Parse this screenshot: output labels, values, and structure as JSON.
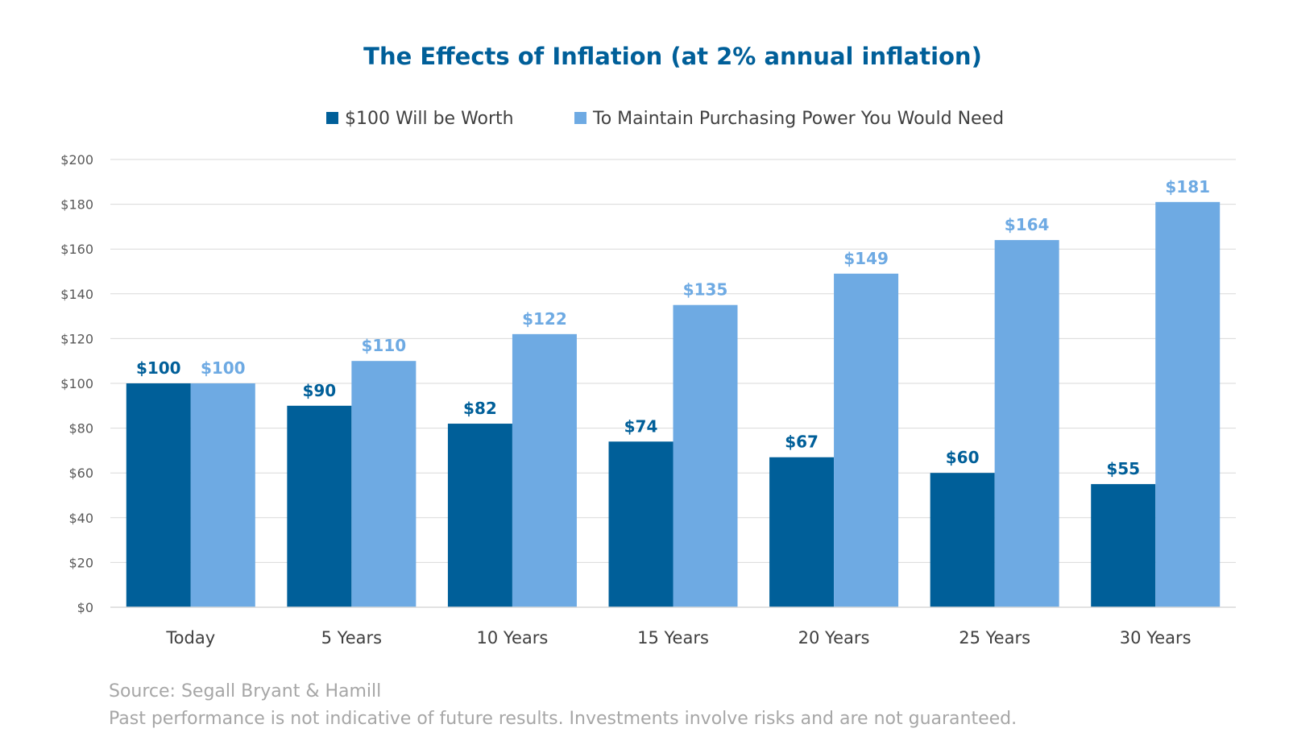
{
  "chart_data": {
    "type": "bar",
    "title": "The Effects of Inflation (at 2% annual inflation)",
    "categories": [
      "Today",
      "5 Years",
      "10 Years",
      "15 Years",
      "20 Years",
      "25 Years",
      "30 Years"
    ],
    "series": [
      {
        "name": "$100 Will be Worth",
        "color": "#005f99",
        "values": [
          100,
          90,
          82,
          74,
          67,
          60,
          55
        ],
        "labels": [
          "$100",
          "$90",
          "$82",
          "$74",
          "$67",
          "$60",
          "$55"
        ]
      },
      {
        "name": "To Maintain Purchasing Power You Would Need",
        "color": "#6eaae3",
        "values": [
          100,
          110,
          122,
          135,
          149,
          164,
          181
        ],
        "labels": [
          "$100",
          "$110",
          "$122",
          "$135",
          "$149",
          "$164",
          "$181"
        ]
      }
    ],
    "ylim": [
      0,
      200
    ],
    "yticks": [
      0,
      20,
      40,
      60,
      80,
      100,
      120,
      140,
      160,
      180,
      200
    ],
    "ytick_labels": [
      "$0",
      "$20",
      "$40",
      "$60",
      "$80",
      "$100",
      "$120",
      "$140",
      "$160",
      "$180",
      "$200"
    ],
    "xlabel": "",
    "ylabel": "",
    "grid": true,
    "legend_position": "top-center",
    "title_color": "#005f99",
    "grid_color": "#d9d9d9"
  },
  "footnotes": {
    "source": "Source: Segall Bryant & Hamill",
    "disclaimer": "Past performance is not indicative of future results. Investments involve risks and are not guaranteed."
  }
}
